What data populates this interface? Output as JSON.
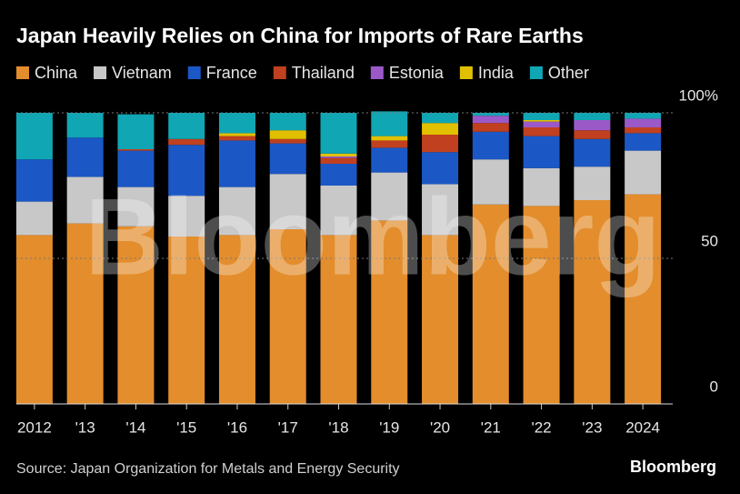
{
  "chart_data": {
    "type": "stacked_bar",
    "title": "Japan Heavily Relies on China for Imports of Rare Earths",
    "categories": [
      "2012",
      "'13",
      "'14",
      "'15",
      "'16",
      "'17",
      "'18",
      "'19",
      "'20",
      "'21",
      "'22",
      "'23",
      "2024"
    ],
    "series": [
      {
        "name": "China",
        "color": "#e38d2c",
        "values": [
          58,
          62,
          61,
          57.5,
          58,
          60,
          58,
          63,
          58,
          68.5,
          68,
          70,
          72
        ]
      },
      {
        "name": "Vietnam",
        "color": "#c8c8c8",
        "values": [
          11.5,
          16,
          13.5,
          14,
          16.5,
          19,
          17,
          16.5,
          17.5,
          15.5,
          13,
          11.5,
          15
        ]
      },
      {
        "name": "France",
        "color": "#1b58c6",
        "values": [
          14.5,
          13.5,
          12.5,
          17.5,
          16,
          10.5,
          7.5,
          8.5,
          11,
          9.5,
          11,
          9.5,
          6
        ]
      },
      {
        "name": "Thailand",
        "color": "#c0401f",
        "values": [
          0,
          0,
          0.5,
          2,
          1.5,
          1.5,
          2,
          2.5,
          6,
          3,
          3,
          3,
          2
        ]
      },
      {
        "name": "Estonia",
        "color": "#9b59c8",
        "values": [
          0,
          0,
          0,
          0,
          0,
          0,
          0.5,
          0,
          0,
          2.5,
          2,
          3.5,
          3
        ]
      },
      {
        "name": "India",
        "color": "#e0c000",
        "values": [
          0,
          0,
          0,
          0,
          1,
          3,
          1,
          1.5,
          4,
          0,
          0.5,
          0,
          0
        ]
      },
      {
        "name": "Other",
        "color": "#10a6b4",
        "values": [
          16,
          8.5,
          12,
          9,
          7,
          6,
          14,
          8.5,
          3.5,
          1,
          2.5,
          2.5,
          2
        ]
      }
    ],
    "ylim": [
      0,
      100
    ],
    "yticks": [
      0,
      50,
      {
        "value": 100,
        "label": "100%"
      }
    ],
    "grid": true,
    "source": "Source: Japan Organization for Metals and Energy Security",
    "brand": "Bloomberg",
    "watermark": "Bloomberg"
  }
}
